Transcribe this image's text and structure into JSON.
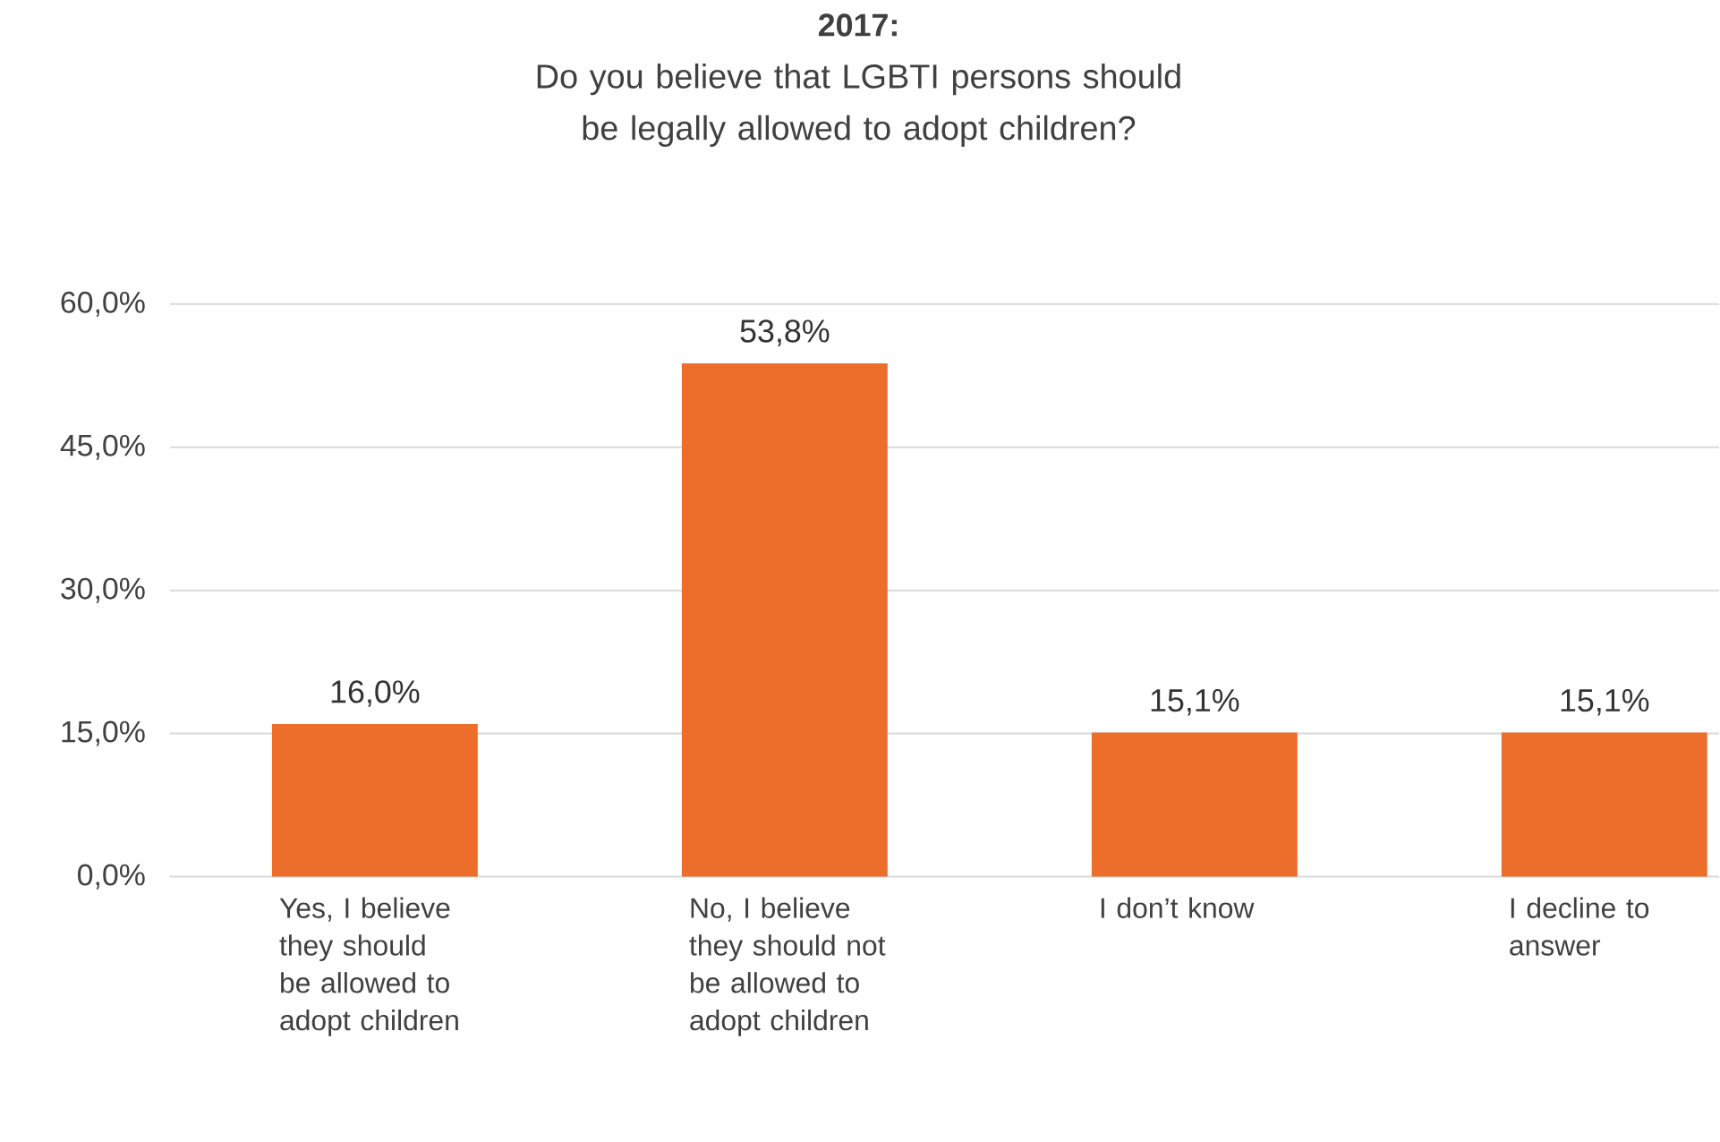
{
  "chart_data": {
    "type": "bar",
    "title": "2017:",
    "subtitle": "Do you believe that LGBTI persons should be legally allowed to adopt children?",
    "categories": [
      "Yes, I believe they should be allowed to adopt children",
      "No, I believe they should not be allowed to adopt children",
      "I don’t know",
      "I decline to answer"
    ],
    "values": [
      16.0,
      53.8,
      15.1,
      15.1
    ],
    "value_labels": [
      "16,0%",
      "53,8%",
      "15,1%",
      "15,1%"
    ],
    "color": "#ed6d2b",
    "ylim": [
      0,
      60
    ],
    "yticks": [
      {
        "value": 0,
        "label": "0,0%"
      },
      {
        "value": 15,
        "label": "15,0%"
      },
      {
        "value": 30,
        "label": "30,0%"
      },
      {
        "value": 45,
        "label": "45,0%"
      },
      {
        "value": 60,
        "label": "60,0%"
      }
    ],
    "grid": "y"
  }
}
